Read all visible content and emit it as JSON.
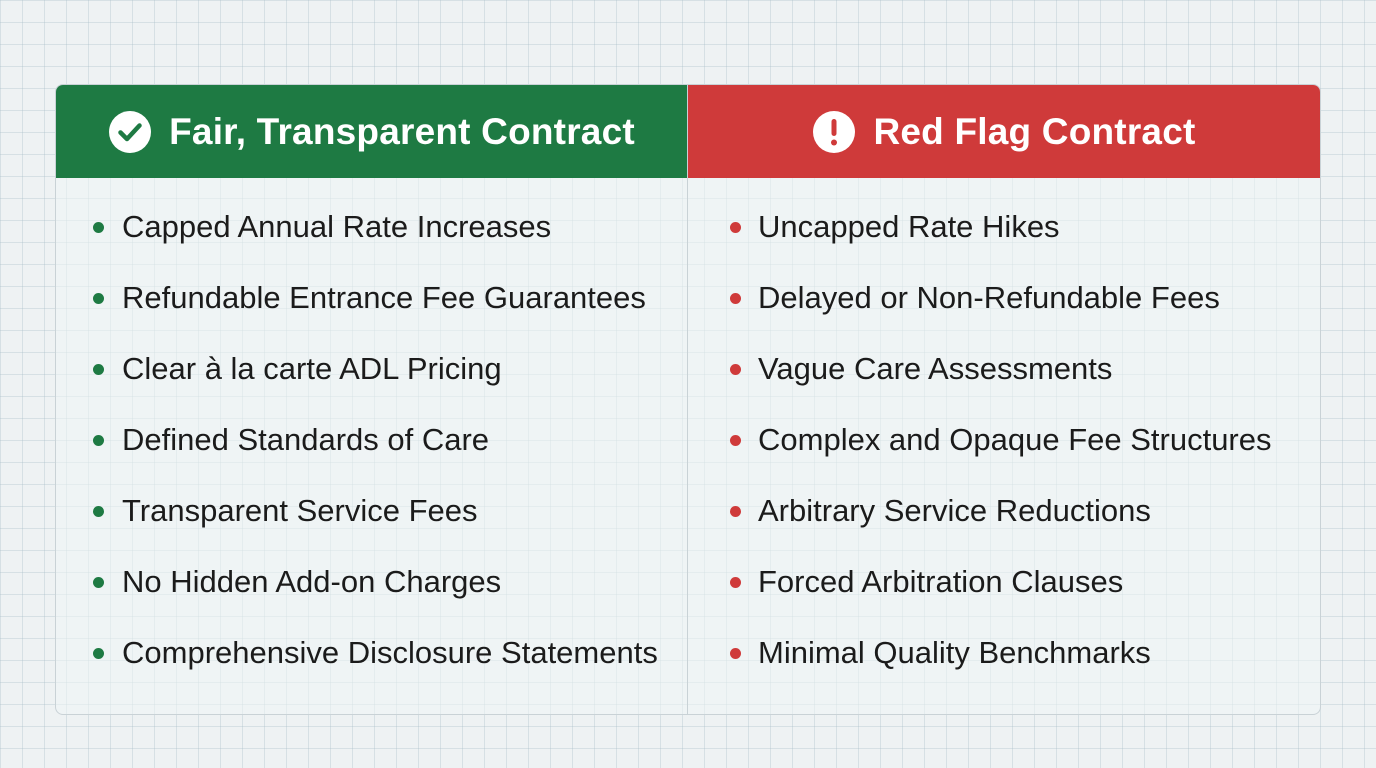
{
  "colors": {
    "good": "#1e7a43",
    "bad": "#cf3a3a",
    "background": "#eef2f3"
  },
  "left_column": {
    "icon": "check-circle-icon",
    "title": "Fair, Transparent Contract",
    "items": [
      "Capped Annual Rate Increases",
      "Refundable Entrance Fee Guarantees",
      "Clear à la carte ADL Pricing",
      "Defined Standards of Care",
      "Transparent Service Fees",
      "No Hidden Add-on Charges",
      "Comprehensive Disclosure Statements"
    ]
  },
  "right_column": {
    "icon": "exclamation-circle-icon",
    "title": "Red Flag Contract",
    "items": [
      "Uncapped Rate Hikes",
      "Delayed or Non-Refundable Fees",
      "Vague Care Assessments",
      "Complex and Opaque Fee Structures",
      "Arbitrary Service Reductions",
      "Forced Arbitration Clauses",
      "Minimal Quality Benchmarks"
    ]
  }
}
